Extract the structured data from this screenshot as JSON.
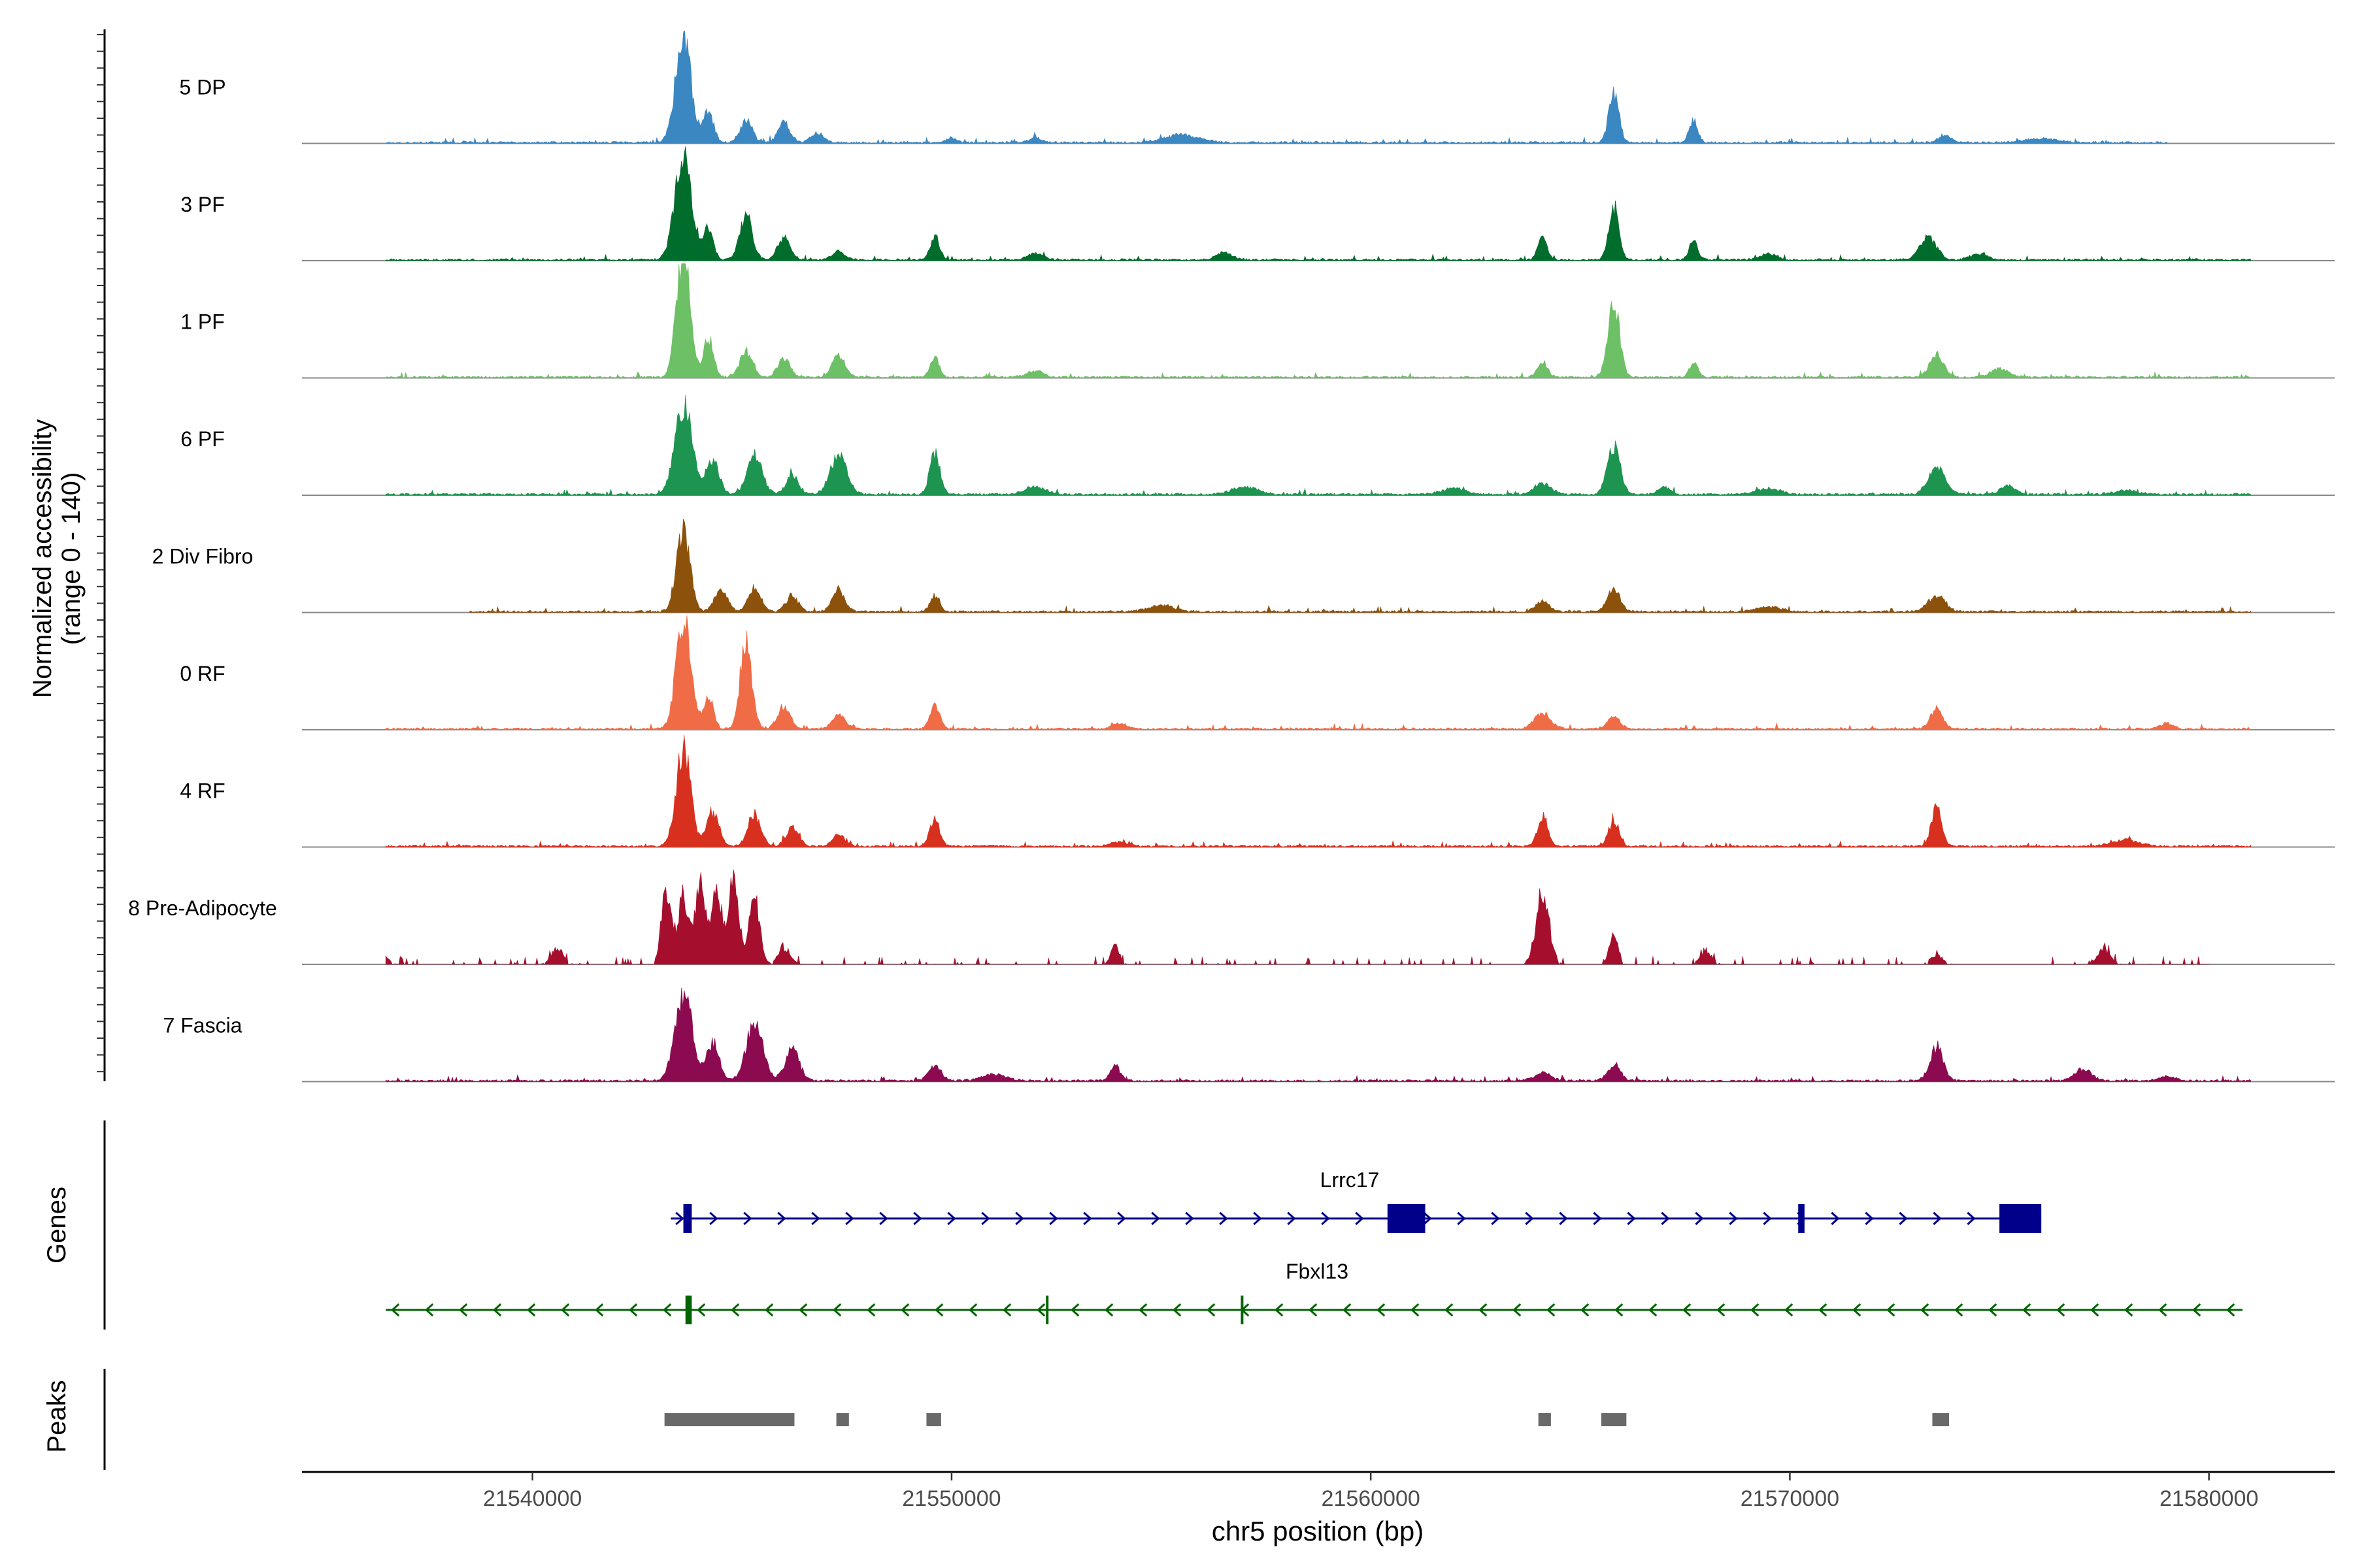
{
  "chart_data": {
    "type": "area",
    "title": "",
    "chromosome": "chr5",
    "xlabel": "chr5 position (bp)",
    "xlim": [
      21534500,
      21583000
    ],
    "xticks": [
      21540000,
      21550000,
      21560000,
      21570000,
      21580000
    ],
    "xtick_labels": [
      "21540000",
      "21550000",
      "21560000",
      "21570000",
      "21580000"
    ],
    "ylabel_line1": "Normalized accessibility",
    "ylabel_line2": "(range 0 - 140)",
    "ylim": [
      0,
      140
    ],
    "tracks": [
      {
        "name": "5 DP",
        "color": "#3a87c2",
        "range": [
          21536500,
          21579000
        ],
        "peaks": [
          [
            21543600,
            135,
            190
          ],
          [
            21544200,
            40,
            120
          ],
          [
            21545100,
            30,
            140
          ],
          [
            21546000,
            25,
            150
          ],
          [
            21546800,
            12,
            150
          ],
          [
            21550000,
            6,
            120
          ],
          [
            21552000,
            6,
            150
          ],
          [
            21555500,
            10,
            400
          ],
          [
            21565800,
            65,
            120
          ],
          [
            21567700,
            30,
            100
          ],
          [
            21573700,
            10,
            150
          ],
          [
            21576000,
            5,
            400
          ]
        ]
      },
      {
        "name": "3 PF",
        "color": "#006d2c",
        "range": [
          21536500,
          21581000
        ],
        "peaks": [
          [
            21543600,
            140,
            200
          ],
          [
            21544200,
            40,
            120
          ],
          [
            21545100,
            60,
            150
          ],
          [
            21546000,
            30,
            150
          ],
          [
            21547300,
            12,
            150
          ],
          [
            21549600,
            30,
            110
          ],
          [
            21552000,
            8,
            200
          ],
          [
            21556500,
            10,
            200
          ],
          [
            21564100,
            28,
            110
          ],
          [
            21565800,
            70,
            120
          ],
          [
            21567700,
            25,
            100
          ],
          [
            21569500,
            8,
            200
          ],
          [
            21573300,
            30,
            200
          ],
          [
            21574500,
            8,
            200
          ]
        ]
      },
      {
        "name": "1 PF",
        "color": "#6dc065",
        "range": [
          21536500,
          21581000
        ],
        "peaks": [
          [
            21543600,
            165,
            160
          ],
          [
            21544200,
            50,
            120
          ],
          [
            21545100,
            35,
            150
          ],
          [
            21546000,
            25,
            140
          ],
          [
            21547300,
            30,
            150
          ],
          [
            21549600,
            28,
            100
          ],
          [
            21552000,
            8,
            200
          ],
          [
            21564100,
            20,
            120
          ],
          [
            21565800,
            95,
            140
          ],
          [
            21567700,
            20,
            100
          ],
          [
            21573500,
            30,
            170
          ],
          [
            21575000,
            12,
            200
          ]
        ]
      },
      {
        "name": "6 PF",
        "color": "#1d9450",
        "range": [
          21536500,
          21581000
        ],
        "peaks": [
          [
            21543600,
            120,
            200
          ],
          [
            21544300,
            45,
            150
          ],
          [
            21545300,
            50,
            180
          ],
          [
            21546200,
            25,
            150
          ],
          [
            21547300,
            50,
            200
          ],
          [
            21549600,
            55,
            120
          ],
          [
            21552000,
            10,
            250
          ],
          [
            21557000,
            10,
            300
          ],
          [
            21562000,
            8,
            300
          ],
          [
            21564100,
            15,
            200
          ],
          [
            21565800,
            65,
            150
          ],
          [
            21567000,
            10,
            150
          ],
          [
            21569500,
            8,
            300
          ],
          [
            21573500,
            35,
            200
          ],
          [
            21575200,
            10,
            200
          ],
          [
            21578000,
            5,
            300
          ]
        ]
      },
      {
        "name": "2 Div Fibro",
        "color": "#8c510a",
        "range": [
          21538500,
          21581000
        ],
        "peaks": [
          [
            21543600,
            110,
            160
          ],
          [
            21544500,
            30,
            150
          ],
          [
            21545300,
            30,
            150
          ],
          [
            21546200,
            20,
            150
          ],
          [
            21547300,
            30,
            150
          ],
          [
            21549600,
            22,
            110
          ],
          [
            21555000,
            8,
            300
          ],
          [
            21564100,
            15,
            150
          ],
          [
            21565800,
            30,
            150
          ],
          [
            21573500,
            20,
            200
          ],
          [
            21569500,
            6,
            300
          ]
        ]
      },
      {
        "name": "0 RF",
        "color": "#ef6c46",
        "range": [
          21536500,
          21581000
        ],
        "peaks": [
          [
            21543600,
            150,
            170
          ],
          [
            21544200,
            40,
            120
          ],
          [
            21545100,
            110,
            140
          ],
          [
            21546000,
            30,
            150
          ],
          [
            21547300,
            20,
            150
          ],
          [
            21549600,
            30,
            120
          ],
          [
            21554000,
            8,
            150
          ],
          [
            21564100,
            20,
            200
          ],
          [
            21565800,
            15,
            150
          ],
          [
            21573500,
            25,
            150
          ],
          [
            21579000,
            8,
            150
          ]
        ]
      },
      {
        "name": "4 RF",
        "color": "#d7301f",
        "range": [
          21536500,
          21581000
        ],
        "peaks": [
          [
            21543600,
            130,
            170
          ],
          [
            21544300,
            45,
            150
          ],
          [
            21545300,
            40,
            150
          ],
          [
            21546200,
            25,
            150
          ],
          [
            21547300,
            15,
            150
          ],
          [
            21549600,
            35,
            120
          ],
          [
            21554000,
            6,
            200
          ],
          [
            21564100,
            40,
            120
          ],
          [
            21565800,
            35,
            120
          ],
          [
            21573500,
            55,
            120
          ],
          [
            21578000,
            8,
            300
          ]
        ]
      },
      {
        "name": "8 Pre-Adipocyte",
        "color": "#a50f2d",
        "range": [
          21536500,
          21580000
        ],
        "peaks": [
          [
            21543200,
            100,
            120
          ],
          [
            21543600,
            90,
            120
          ],
          [
            21544000,
            110,
            120
          ],
          [
            21544400,
            100,
            120
          ],
          [
            21544800,
            120,
            120
          ],
          [
            21545300,
            90,
            120
          ],
          [
            21546000,
            20,
            150
          ],
          [
            21540600,
            20,
            150
          ],
          [
            21553900,
            25,
            100
          ],
          [
            21564100,
            95,
            150
          ],
          [
            21565800,
            45,
            100
          ],
          [
            21568000,
            15,
            150
          ],
          [
            21573500,
            12,
            150
          ],
          [
            21577500,
            20,
            150
          ],
          [
            21536500,
            10,
            100
          ]
        ]
      },
      {
        "name": "7 Fascia",
        "color": "#8b0a50",
        "range": [
          21536500,
          21581000
        ],
        "peaks": [
          [
            21543600,
            120,
            200
          ],
          [
            21544300,
            50,
            150
          ],
          [
            21545300,
            75,
            200
          ],
          [
            21546200,
            40,
            170
          ],
          [
            21549600,
            20,
            150
          ],
          [
            21551000,
            8,
            300
          ],
          [
            21553900,
            20,
            120
          ],
          [
            21564100,
            10,
            200
          ],
          [
            21565800,
            20,
            150
          ],
          [
            21573500,
            45,
            160
          ],
          [
            21577000,
            15,
            200
          ],
          [
            21579000,
            6,
            200
          ]
        ]
      }
    ],
    "genes_label": "Genes",
    "genes": [
      {
        "name": "Lrrc17",
        "color": "#00008b",
        "strand": "+",
        "start": 21543300,
        "end": 21576000,
        "exons": [
          [
            21543600,
            21543800
          ],
          [
            21560400,
            21561300
          ],
          [
            21570200,
            21570350
          ],
          [
            21575000,
            21576000
          ]
        ]
      },
      {
        "name": "Fbxl13",
        "color": "#006400",
        "strand": "-",
        "start": 21536500,
        "end": 21580800,
        "exons": [
          [
            21543650,
            21543800
          ],
          [
            21552250,
            21552300
          ],
          [
            21556900,
            21556950
          ]
        ]
      }
    ],
    "peaks_label": "Peaks",
    "peak_color": "#696969",
    "peak_regions": [
      [
        21543150,
        21546250
      ],
      [
        21547250,
        21547550
      ],
      [
        21549400,
        21549750
      ],
      [
        21564000,
        21564300
      ],
      [
        21565500,
        21566100
      ],
      [
        21573400,
        21573800
      ]
    ]
  }
}
